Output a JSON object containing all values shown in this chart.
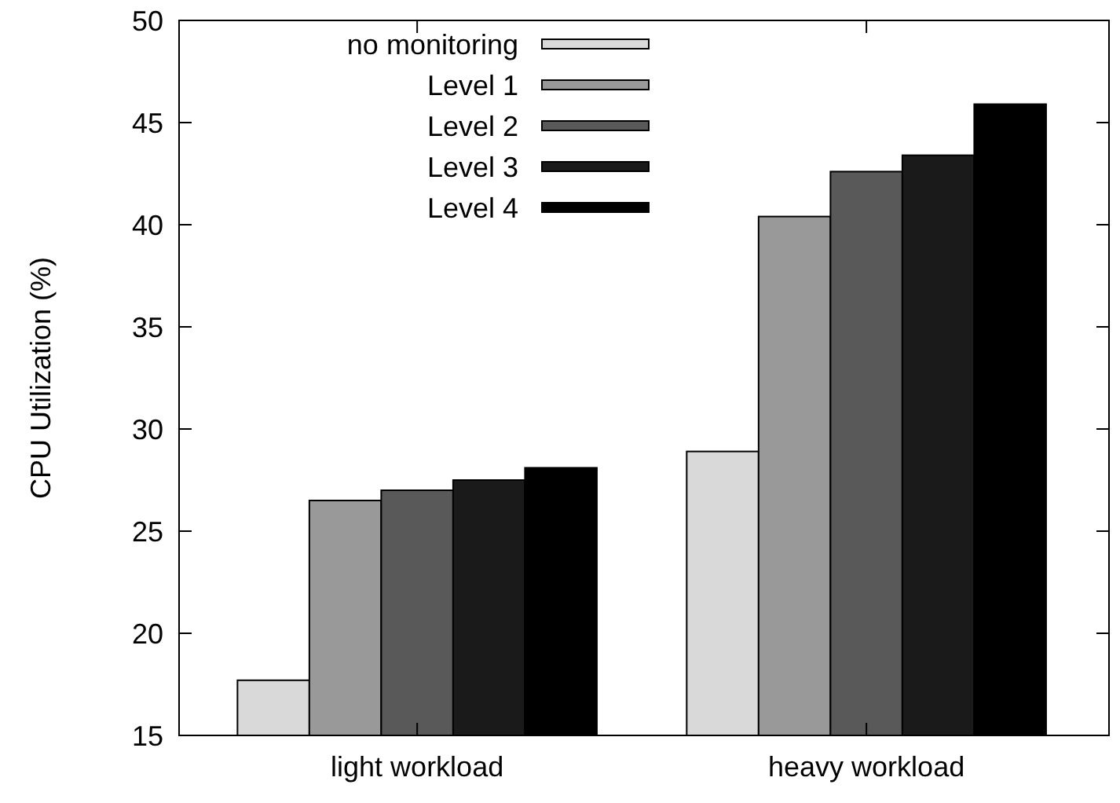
{
  "chart_data": {
    "type": "bar",
    "ylabel": "CPU Utilization (%)",
    "categories": [
      "light workload",
      "heavy workload"
    ],
    "series": [
      {
        "name": "no monitoring",
        "color": "#d9d9d9",
        "values": [
          17.7,
          28.9
        ]
      },
      {
        "name": "Level 1",
        "color": "#999999",
        "values": [
          26.5,
          40.4
        ]
      },
      {
        "name": "Level 2",
        "color": "#595959",
        "values": [
          27.0,
          42.6
        ]
      },
      {
        "name": "Level 3",
        "color": "#1a1a1a",
        "values": [
          27.5,
          43.4
        ]
      },
      {
        "name": "Level 4",
        "color": "#000000",
        "values": [
          28.1,
          45.9
        ]
      }
    ],
    "ylim": [
      15,
      50
    ],
    "yticks": [
      15,
      20,
      25,
      30,
      35,
      40,
      45,
      50
    ],
    "grid": false,
    "legend": "top left"
  }
}
